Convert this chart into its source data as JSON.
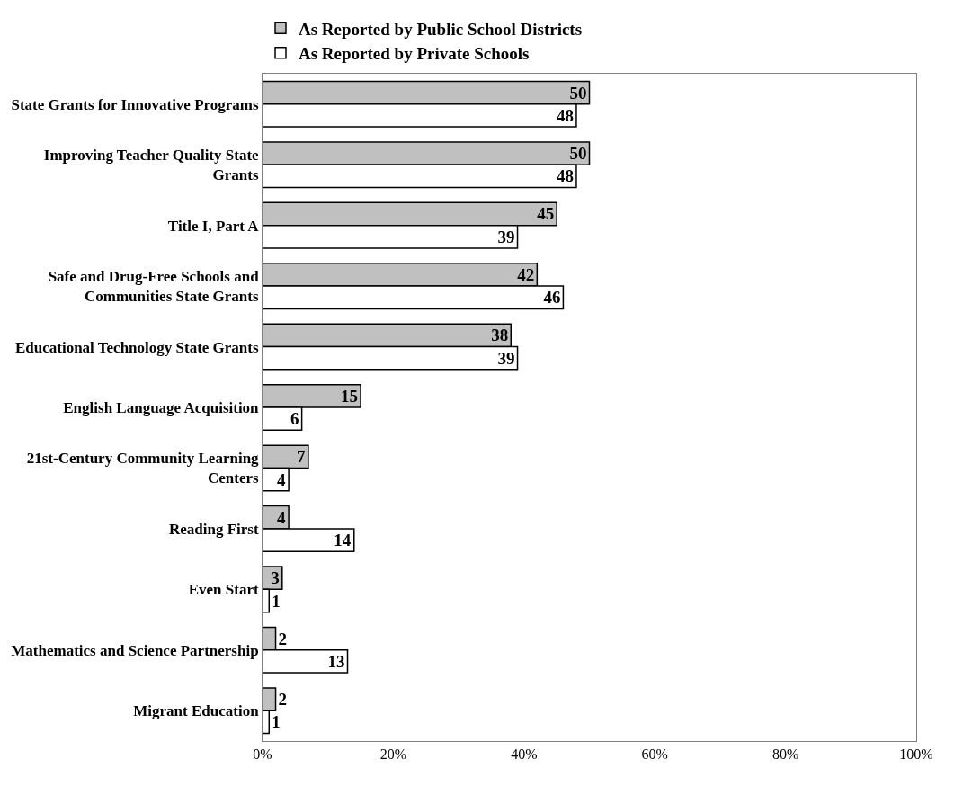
{
  "chart_data": {
    "type": "bar",
    "orientation": "horizontal",
    "categories": [
      "State Grants for Innovative Programs",
      "Improving Teacher Quality State Grants",
      "Title I, Part A",
      "Safe and Drug-Free Schools and Communities State Grants",
      "Educational Technology State Grants",
      "English Language Acquisition",
      "21st-Century Community Learning Centers",
      "Reading First",
      "Even Start",
      "Mathematics and Science Partnership",
      "Migrant Education"
    ],
    "series": [
      {
        "name": "As Reported by Public School Districts",
        "color": "#c0c0c0",
        "values": [
          50,
          50,
          45,
          42,
          38,
          15,
          7,
          4,
          3,
          2,
          2
        ]
      },
      {
        "name": "As Reported by Private Schools",
        "color": "#ffffff",
        "values": [
          48,
          48,
          39,
          46,
          39,
          6,
          4,
          14,
          1,
          13,
          1
        ]
      }
    ],
    "xlim": [
      0,
      100
    ],
    "xticks": [
      {
        "value": 0,
        "label": "0%"
      },
      {
        "value": 20,
        "label": "20%"
      },
      {
        "value": 40,
        "label": "40%"
      },
      {
        "value": 60,
        "label": "60%"
      },
      {
        "value": 80,
        "label": "80%"
      },
      {
        "value": 100,
        "label": "100%"
      }
    ],
    "data_labels": true,
    "legend": "top"
  }
}
